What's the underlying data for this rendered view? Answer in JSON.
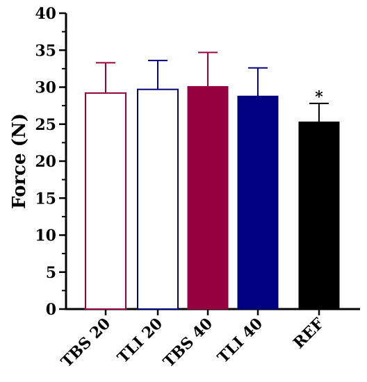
{
  "chart_data": {
    "type": "bar",
    "title": "",
    "xlabel": "",
    "ylabel": "Force (N)",
    "ylim": [
      0,
      40
    ],
    "yticks": [
      0,
      5,
      10,
      15,
      20,
      25,
      30,
      35,
      40
    ],
    "grid": false,
    "categories": [
      "TBS 20",
      "TLI 20",
      "TBS 40",
      "TLI 40",
      "REF"
    ],
    "values": [
      29.2,
      29.7,
      30.1,
      28.8,
      25.3
    ],
    "errors": [
      4.1,
      3.9,
      4.6,
      3.8,
      2.5
    ],
    "fill": [
      "#ffffff",
      "#ffffff",
      "#96003e",
      "#000080",
      "#000000"
    ],
    "stroke": [
      "#96003e",
      "#000080",
      "#96003e",
      "#000080",
      "#000000"
    ],
    "annotations": [
      {
        "category": "REF",
        "text": "*"
      }
    ]
  }
}
